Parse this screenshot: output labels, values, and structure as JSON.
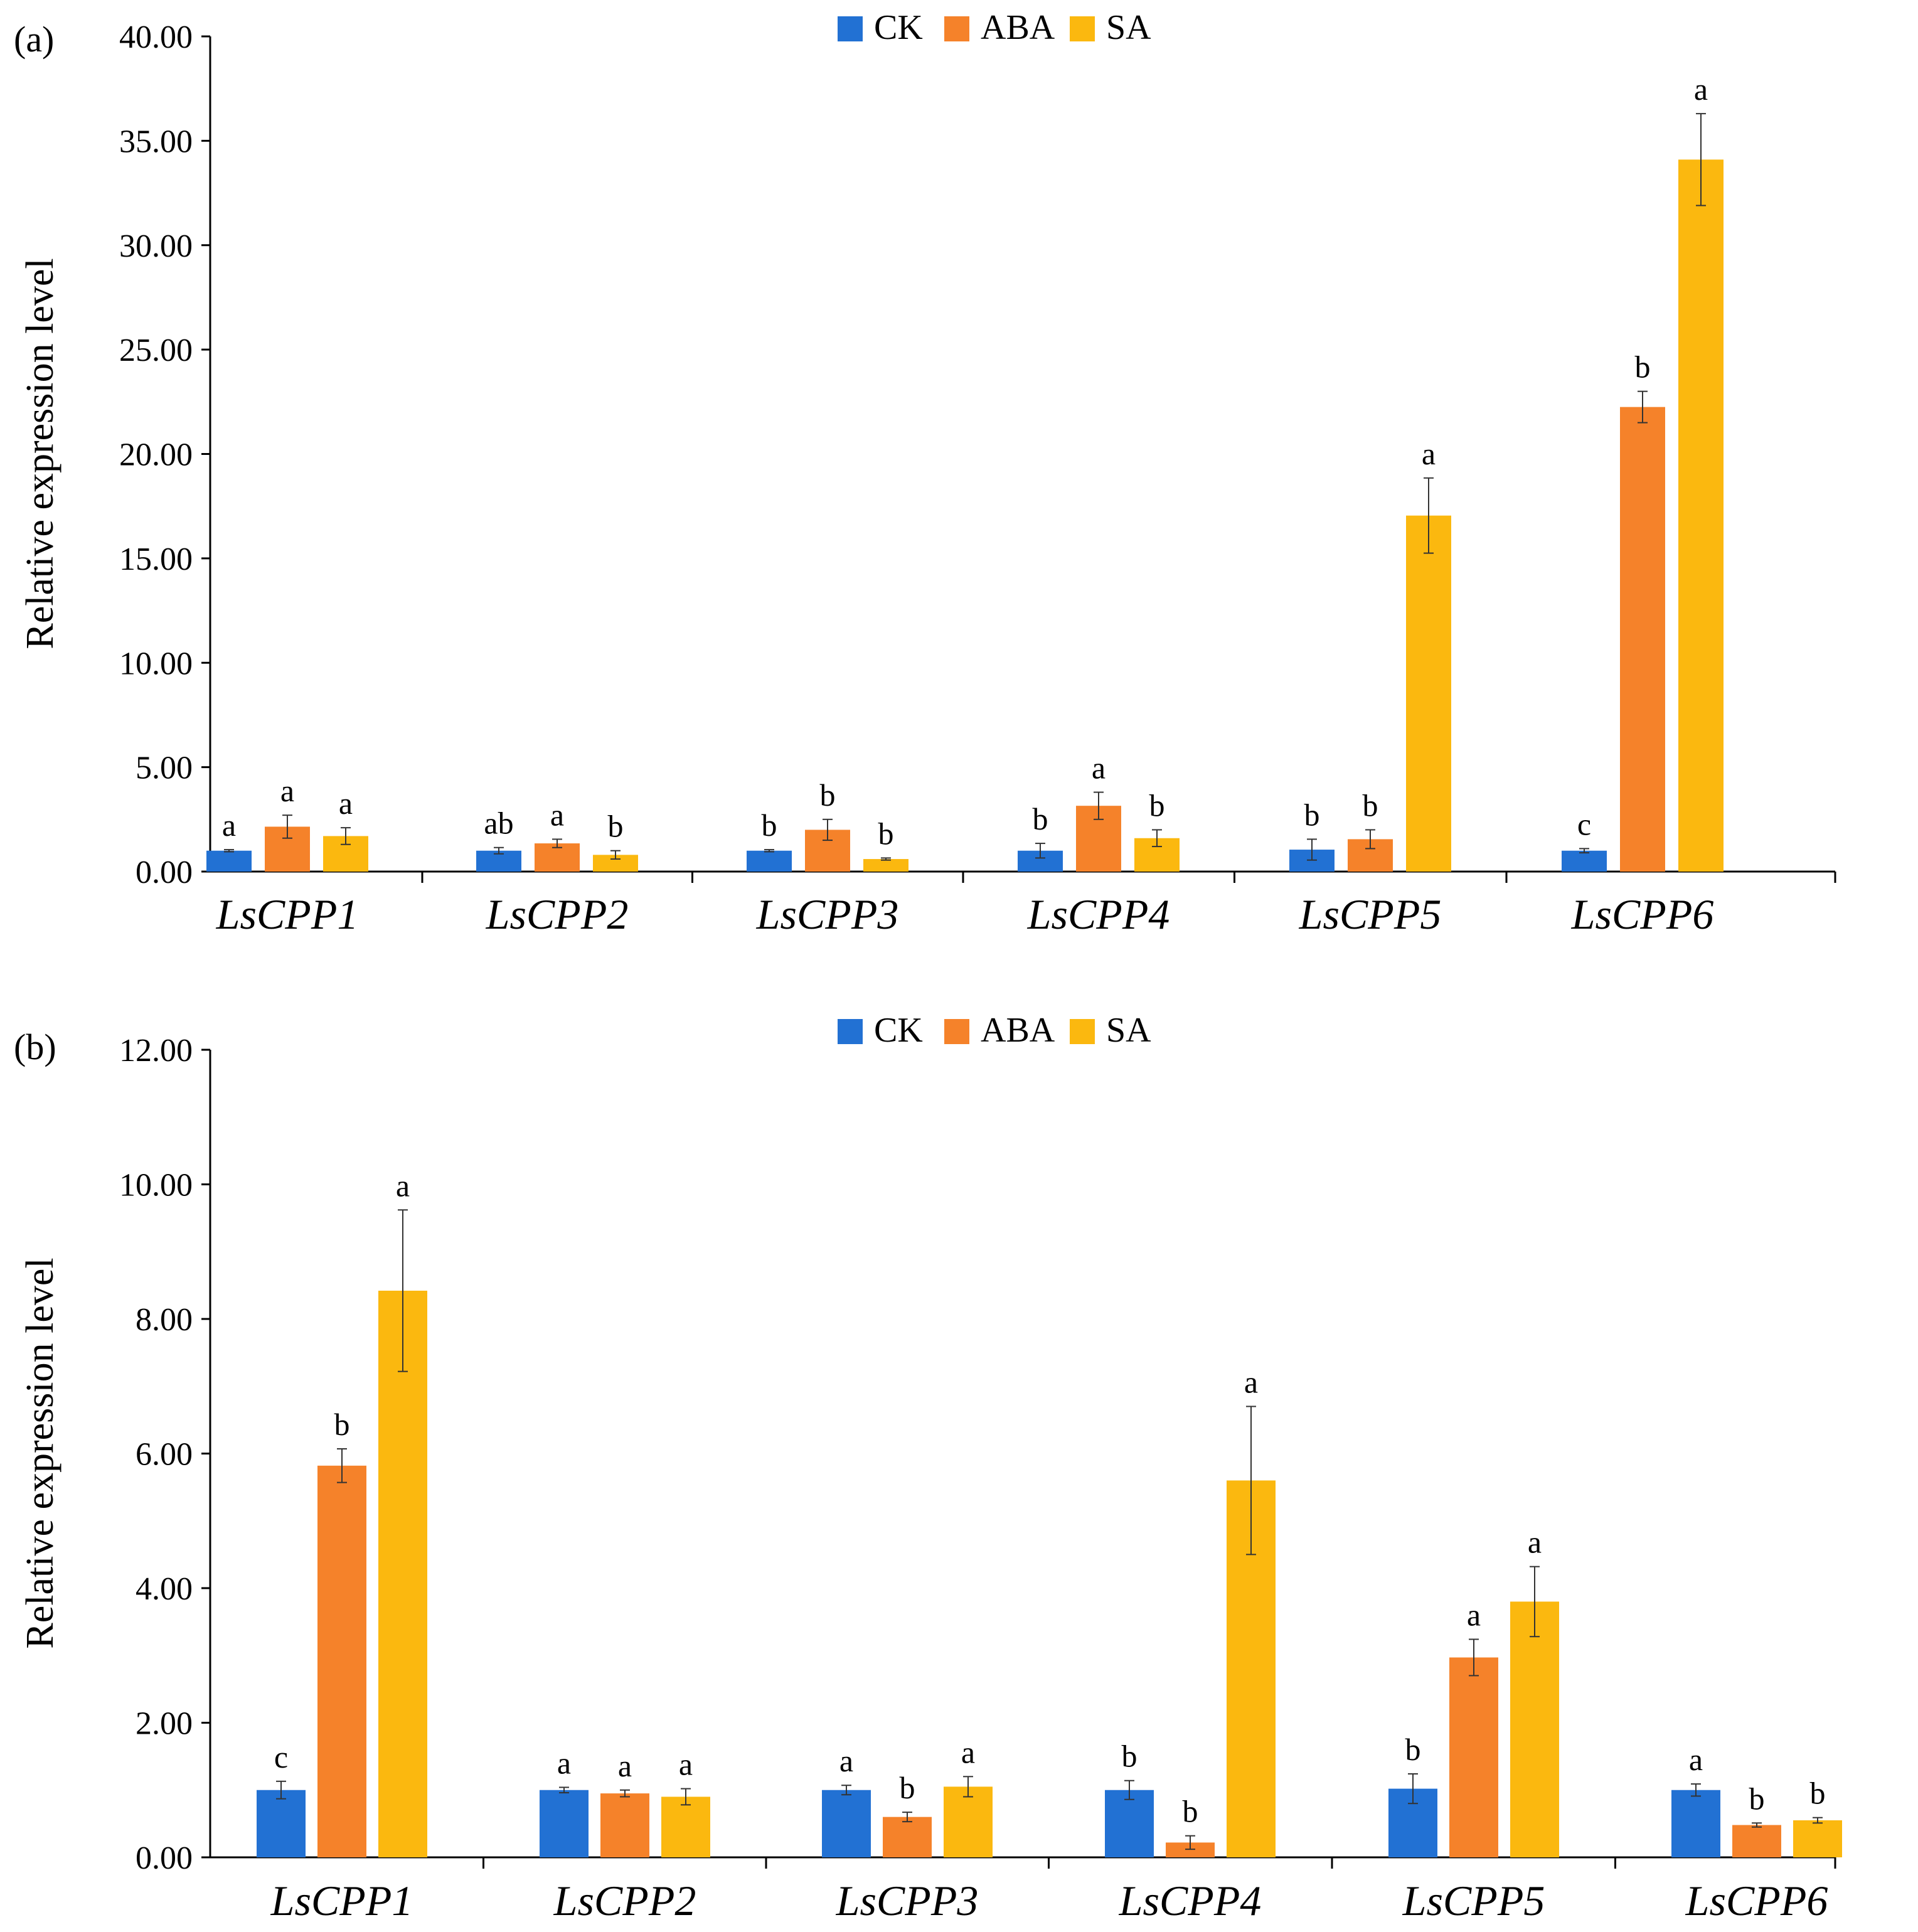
{
  "chart_data": [
    {
      "panel_label": "(a)",
      "type": "bar",
      "ylabel": "Relative expression level",
      "ylim": [
        0,
        40
      ],
      "yticks": [
        "0.00",
        "5.00",
        "10.00",
        "15.00",
        "20.00",
        "25.00",
        "30.00",
        "35.00",
        "40.00"
      ],
      "grid": false,
      "legend_position": "top-center",
      "categories": [
        "LsCPP1",
        "LsCPP2",
        "LsCPP3",
        "LsCPP4",
        "LsCPP5",
        "LsCPP6"
      ],
      "series": [
        {
          "name": "CK",
          "color": "#2271d3",
          "values": [
            1.0,
            1.0,
            1.0,
            1.0,
            1.05,
            1.0
          ],
          "errors": [
            0.05,
            0.15,
            0.05,
            0.35,
            0.5,
            0.1
          ],
          "letters": [
            "a",
            "ab",
            "b",
            "b",
            "b",
            "c"
          ]
        },
        {
          "name": "ABA",
          "color": "#f5822a",
          "values": [
            2.15,
            1.35,
            2.0,
            3.15,
            1.55,
            22.25
          ],
          "errors": [
            0.55,
            0.2,
            0.5,
            0.65,
            0.45,
            0.75
          ],
          "letters": [
            "a",
            "a",
            "b",
            "a",
            "b",
            "b"
          ]
        },
        {
          "name": "SA",
          "color": "#fbb80f",
          "values": [
            1.7,
            0.8,
            0.6,
            1.6,
            17.05,
            34.1
          ],
          "errors": [
            0.4,
            0.2,
            0.05,
            0.4,
            1.8,
            2.2
          ],
          "letters": [
            "a",
            "b",
            "b",
            "b",
            "a",
            "a"
          ]
        }
      ]
    },
    {
      "panel_label": "(b)",
      "type": "bar",
      "ylabel": "Relative expression level",
      "ylim": [
        0,
        12
      ],
      "yticks": [
        "0.00",
        "2.00",
        "4.00",
        "6.00",
        "8.00",
        "10.00",
        "12.00"
      ],
      "grid": false,
      "legend_position": "top-center",
      "categories": [
        "LsCPP1",
        "LsCPP2",
        "LsCPP3",
        "LsCPP4",
        "LsCPP5",
        "LsCPP6"
      ],
      "series": [
        {
          "name": "CK",
          "color": "#2271d3",
          "values": [
            1.0,
            1.0,
            1.0,
            1.0,
            1.02,
            1.0
          ],
          "errors": [
            0.13,
            0.04,
            0.07,
            0.14,
            0.22,
            0.09
          ],
          "letters": [
            "c",
            "a",
            "a",
            "b",
            "b",
            "a"
          ]
        },
        {
          "name": "ABA",
          "color": "#f5822a",
          "values": [
            5.82,
            0.95,
            0.6,
            0.22,
            2.97,
            0.48
          ],
          "errors": [
            0.25,
            0.05,
            0.07,
            0.1,
            0.27,
            0.03
          ],
          "letters": [
            "b",
            "a",
            "b",
            "b",
            "a",
            "b"
          ]
        },
        {
          "name": "SA",
          "color": "#fbb80f",
          "values": [
            8.42,
            0.9,
            1.05,
            5.6,
            3.8,
            0.55
          ],
          "errors": [
            1.2,
            0.12,
            0.15,
            1.1,
            0.52,
            0.04
          ],
          "letters": [
            "a",
            "a",
            "a",
            "a",
            "a",
            "b"
          ]
        }
      ]
    }
  ]
}
